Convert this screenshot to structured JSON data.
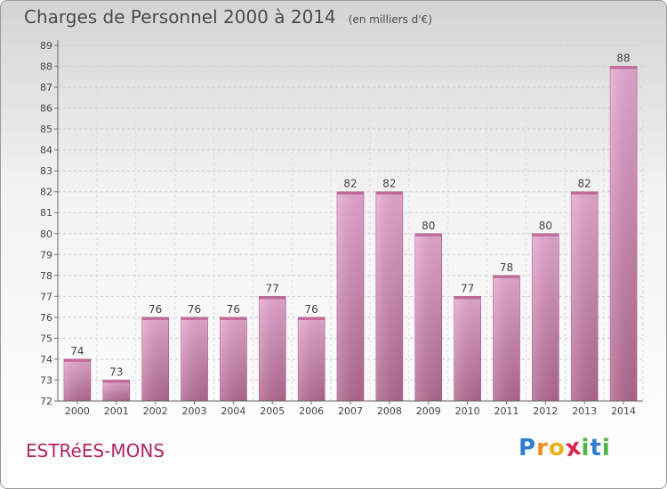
{
  "chart_data": {
    "type": "bar",
    "title": "Charges de Personnel 2000 à 2014",
    "subtitle": "(en milliers d'€)",
    "categories": [
      "2000",
      "2001",
      "2002",
      "2003",
      "2004",
      "2005",
      "2006",
      "2007",
      "2008",
      "2009",
      "2010",
      "2011",
      "2012",
      "2013",
      "2014"
    ],
    "values": [
      74,
      73,
      76,
      76,
      76,
      77,
      76,
      82,
      82,
      80,
      77,
      78,
      80,
      82,
      88
    ],
    "ylim": [
      72,
      89
    ],
    "yticks": [
      "72",
      "73",
      "74",
      "75",
      "76",
      "77",
      "78",
      "79",
      "80",
      "81",
      "82",
      "83",
      "84",
      "85",
      "86",
      "87",
      "88",
      "89"
    ],
    "grid": true,
    "bar_color": "#dda0c8"
  },
  "footer": {
    "city": "ESTRéES-MONS",
    "brand_letters": [
      "P",
      "r",
      "o",
      "x",
      "i",
      "t",
      "i"
    ],
    "brand_colors": [
      "#2f7fd0",
      "#ef8a1f",
      "#e8b31c",
      "#d8234f",
      "#52b447",
      "#2f7fd0",
      "#52b447"
    ]
  }
}
